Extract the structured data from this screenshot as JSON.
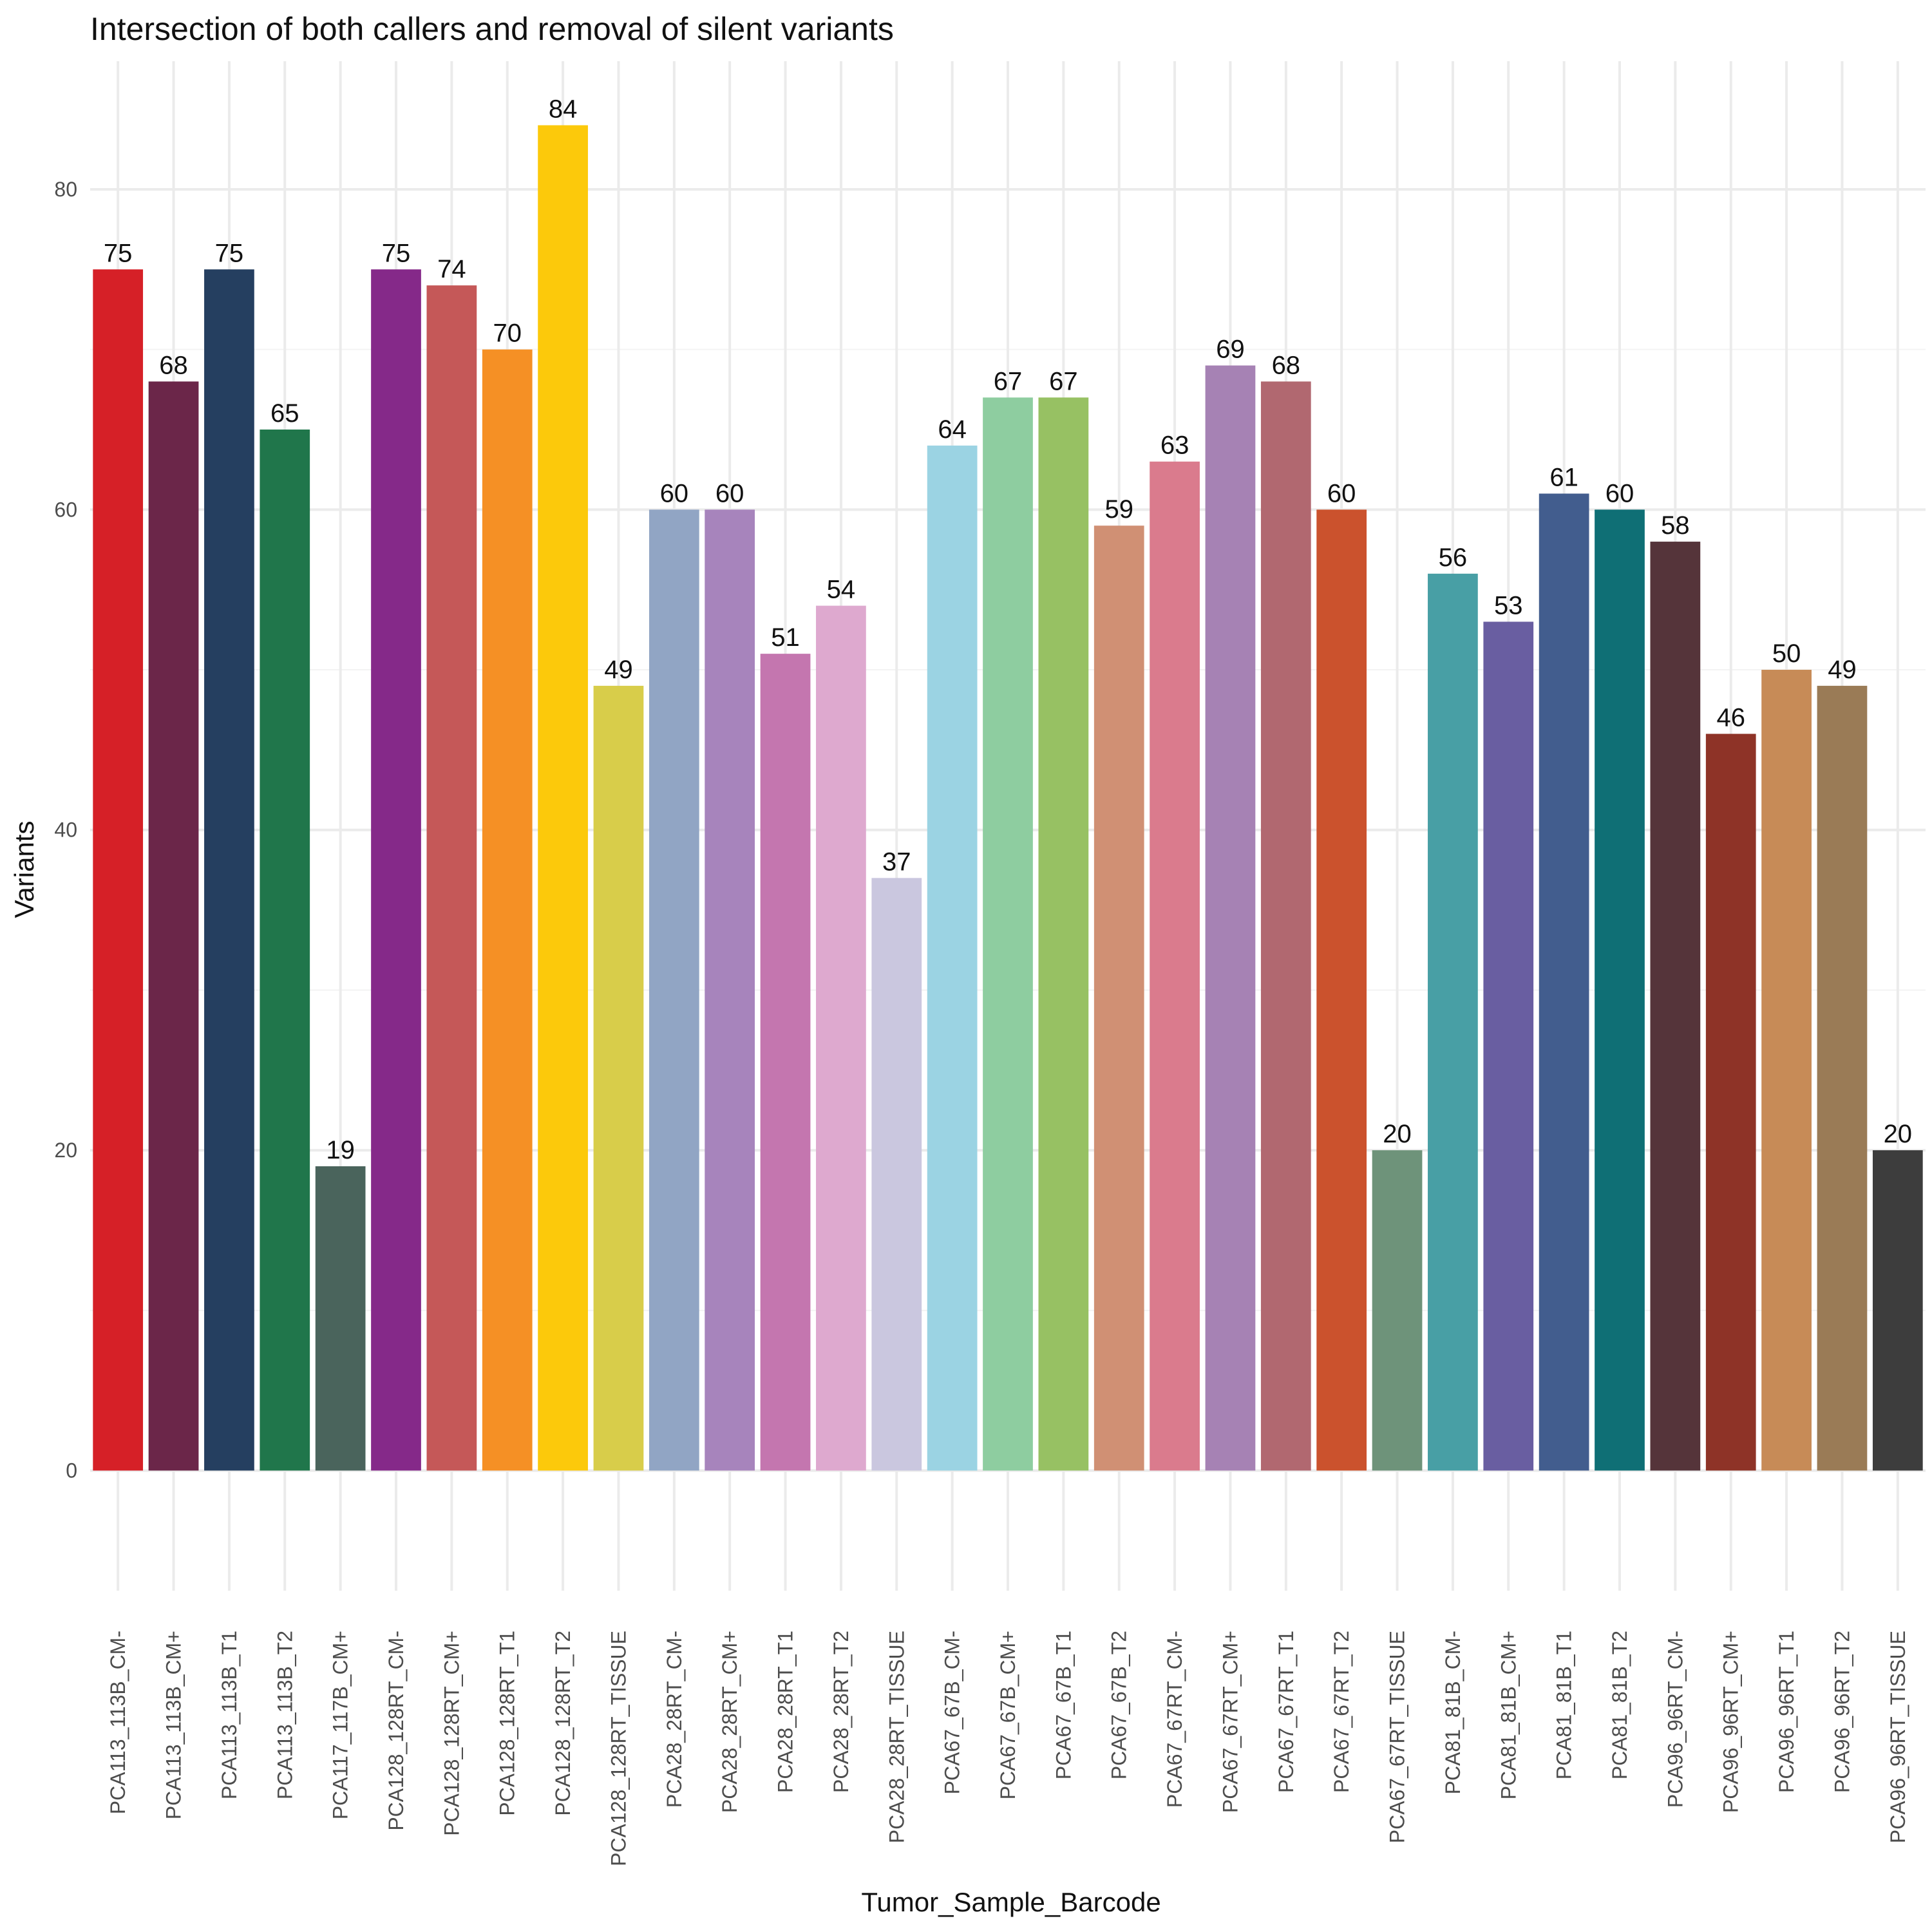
{
  "chart_data": {
    "type": "bar",
    "title": "Intersection of both callers and removal of silent variants",
    "xlabel": "Tumor_Sample_Barcode",
    "ylabel": "Variants",
    "ylim": [
      -7.5,
      88
    ],
    "yticks": [
      0,
      20,
      40,
      60,
      80
    ],
    "grid": true,
    "categories": [
      "PCA113_113B_CM-",
      "PCA113_113B_CM+",
      "PCA113_113B_T1",
      "PCA113_113B_T2",
      "PCA117_117B_CM+",
      "PCA128_128RT_CM-",
      "PCA128_128RT_CM+",
      "PCA128_128RT_T1",
      "PCA128_128RT_T2",
      "PCA128_128RT_TISSUE",
      "PCA28_28RT_CM-",
      "PCA28_28RT_CM+",
      "PCA28_28RT_T1",
      "PCA28_28RT_T2",
      "PCA28_28RT_TISSUE",
      "PCA67_67B_CM-",
      "PCA67_67B_CM+",
      "PCA67_67B_T1",
      "PCA67_67B_T2",
      "PCA67_67RT_CM-",
      "PCA67_67RT_CM+",
      "PCA67_67RT_T1",
      "PCA67_67RT_T2",
      "PCA67_67RT_TISSUE",
      "PCA81_81B_CM-",
      "PCA81_81B_CM+",
      "PCA81_81B_T1",
      "PCA81_81B_T2",
      "PCA96_96RT_CM-",
      "PCA96_96RT_CM+",
      "PCA96_96RT_T1",
      "PCA96_96RT_T2",
      "PCA96_96RT_TISSUE"
    ],
    "values": [
      75,
      68,
      75,
      65,
      19,
      75,
      74,
      70,
      84,
      49,
      60,
      60,
      51,
      54,
      37,
      64,
      67,
      67,
      59,
      63,
      69,
      68,
      60,
      20,
      56,
      53,
      61,
      60,
      58,
      46,
      50,
      49,
      20
    ],
    "colors": [
      "#d62027",
      "#6b2649",
      "#253f60",
      "#20764b",
      "#4a645c",
      "#852989",
      "#c55858",
      "#f59025",
      "#fcc90b",
      "#d8cd4a",
      "#91a5c4",
      "#a784bc",
      "#c476af",
      "#dea9cf",
      "#cac7df",
      "#9bd3e3",
      "#8ecda0",
      "#97c163",
      "#d09074",
      "#da7b8d",
      "#a682b4",
      "#b16870",
      "#cb522d",
      "#6e937a",
      "#489fa5",
      "#695ea1",
      "#425d8e",
      "#0f6f75",
      "#55343a",
      "#8e3327",
      "#c78b57",
      "#9a7b56",
      "#3d3d3d"
    ]
  }
}
